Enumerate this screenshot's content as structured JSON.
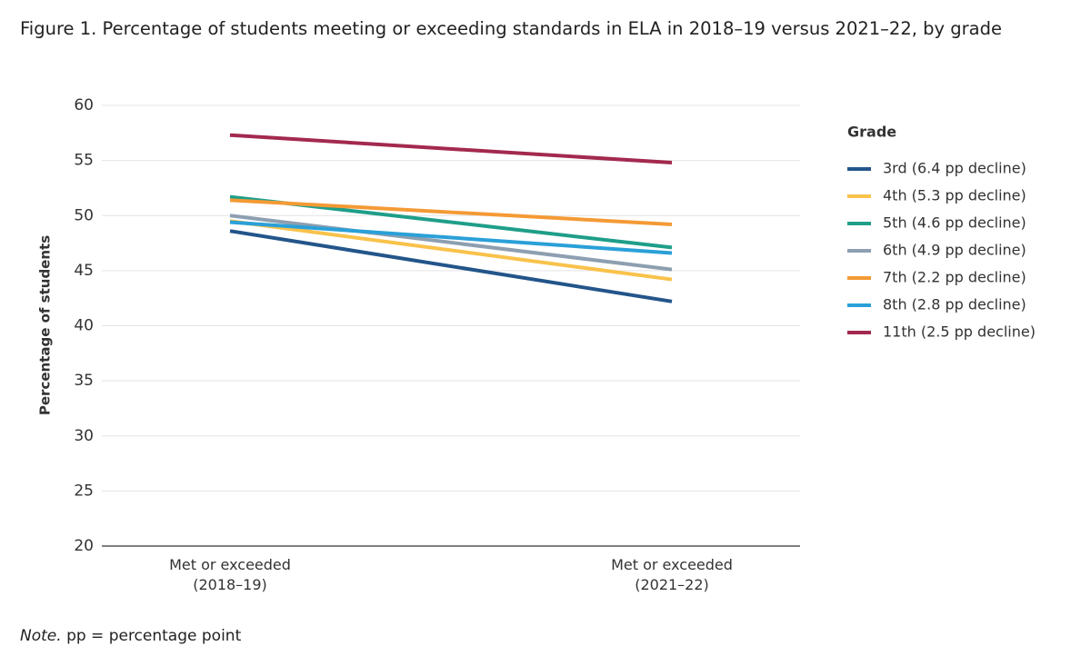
{
  "chart_data": {
    "type": "line",
    "figure_label": "Figure 1.",
    "title": "Percentage of students meeting or exceeding standards in ELA in 2018–19 versus 2021–22, by grade",
    "y_label": "Percentage of students",
    "categories": [
      "Met or exceeded (2018–19)",
      "Met or exceeded (2021–22)"
    ],
    "legend_title": "Grade",
    "legend": "right",
    "grid": true,
    "ylim": [
      20,
      60
    ],
    "yticks": [
      20,
      25,
      30,
      35,
      40,
      45,
      50,
      55,
      60
    ],
    "series": [
      {
        "name": "3rd (6.4 pp decline)",
        "color": "#23558a",
        "values": [
          48.6,
          42.2
        ]
      },
      {
        "name": "4th (5.3 pp decline)",
        "color": "#f9c24b",
        "values": [
          49.5,
          44.2
        ]
      },
      {
        "name": "5th (4.6 pp decline)",
        "color": "#1f9e89",
        "values": [
          51.7,
          47.1
        ]
      },
      {
        "name": "6th (4.9 pp decline)",
        "color": "#8d9fb0",
        "values": [
          50.0,
          45.1
        ]
      },
      {
        "name": "7th (2.2 pp decline)",
        "color": "#f49a35",
        "values": [
          51.4,
          49.2
        ]
      },
      {
        "name": "8th (2.8 pp decline)",
        "color": "#2aa0d8",
        "values": [
          49.4,
          46.6
        ]
      },
      {
        "name": "11th (2.5 pp decline)",
        "color": "#a3294f",
        "values": [
          57.3,
          54.8
        ]
      }
    ],
    "note_label": "Note.",
    "note": "pp = percentage point"
  }
}
